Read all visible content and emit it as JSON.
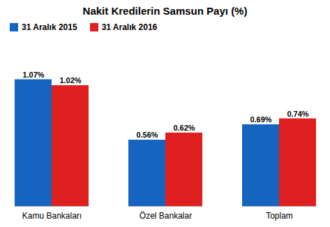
{
  "chart_data": {
    "type": "bar",
    "title": "Nakit Kredilerin Samsun Payı (%)",
    "categories": [
      "Kamu Bankaları",
      "Özel Bankalar",
      "Toplam"
    ],
    "series": [
      {
        "name": "31 Aralık 2015",
        "color": "#1565c0",
        "values": [
          1.07,
          0.56,
          0.69
        ],
        "value_labels": [
          "1.07%",
          "0.56%",
          "0.69%"
        ]
      },
      {
        "name": "31 Aralık 2016",
        "color": "#e02020",
        "values": [
          1.02,
          0.62,
          0.74
        ],
        "value_labels": [
          "1.02%",
          "0.62%",
          "0.74%"
        ]
      }
    ],
    "ylim": [
      0,
      1.35
    ],
    "grid": false,
    "legend": "top",
    "data_labels": true,
    "tick_labels": "x"
  }
}
